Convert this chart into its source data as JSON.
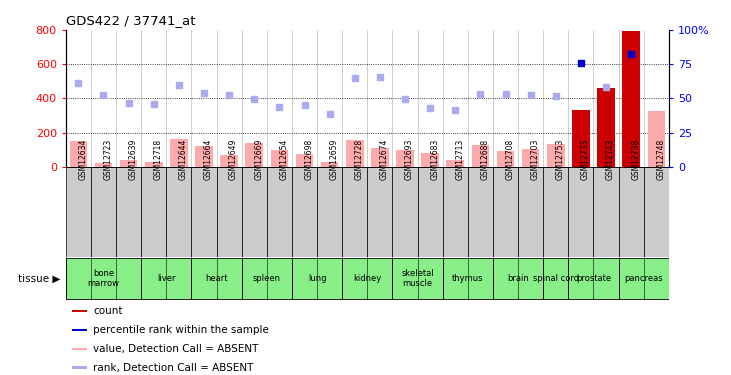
{
  "title": "GDS422 / 37741_at",
  "samples": [
    "GSM12634",
    "GSM12723",
    "GSM12639",
    "GSM12718",
    "GSM12644",
    "GSM12664",
    "GSM12649",
    "GSM12669",
    "GSM12654",
    "GSM12698",
    "GSM12659",
    "GSM12728",
    "GSM12674",
    "GSM12693",
    "GSM12683",
    "GSM12713",
    "GSM12688",
    "GSM12708",
    "GSM12703",
    "GSM12753",
    "GSM12733",
    "GSM12743",
    "GSM12738",
    "GSM12748"
  ],
  "tissues": [
    {
      "name": "bone\nmarrow",
      "start": 0,
      "end": 3
    },
    {
      "name": "liver",
      "start": 3,
      "end": 5
    },
    {
      "name": "heart",
      "start": 5,
      "end": 7
    },
    {
      "name": "spleen",
      "start": 7,
      "end": 9
    },
    {
      "name": "lung",
      "start": 9,
      "end": 11
    },
    {
      "name": "kidney",
      "start": 11,
      "end": 13
    },
    {
      "name": "skeletal\nmuscle",
      "start": 13,
      "end": 15
    },
    {
      "name": "thymus",
      "start": 15,
      "end": 17
    },
    {
      "name": "brain",
      "start": 17,
      "end": 19
    },
    {
      "name": "spinal cord",
      "start": 19,
      "end": 20
    },
    {
      "name": "prostate",
      "start": 20,
      "end": 22
    },
    {
      "name": "pancreas",
      "start": 22,
      "end": 24
    }
  ],
  "bar_values": [
    150,
    25,
    42,
    30,
    165,
    120,
    70,
    140,
    100,
    78,
    30,
    158,
    110,
    98,
    82,
    40,
    130,
    90,
    102,
    132,
    335,
    460,
    795,
    325
  ],
  "bar_colors_list": [
    "#ffaaaa",
    "#ffaaaa",
    "#ffaaaa",
    "#ffaaaa",
    "#ffaaaa",
    "#ffaaaa",
    "#ffaaaa",
    "#ffaaaa",
    "#ffaaaa",
    "#ffaaaa",
    "#ffaaaa",
    "#ffaaaa",
    "#ffaaaa",
    "#ffaaaa",
    "#ffaaaa",
    "#ffaaaa",
    "#ffaaaa",
    "#ffaaaa",
    "#ffaaaa",
    "#ffaaaa",
    "#cc0000",
    "#cc0000",
    "#cc0000",
    "#ffaaaa"
  ],
  "rank_values": [
    490,
    420,
    376,
    370,
    480,
    432,
    420,
    398,
    348,
    362,
    308,
    520,
    528,
    395,
    344,
    330,
    428,
    424,
    418,
    414,
    610,
    466,
    660,
    null
  ],
  "rank_colors": [
    "#aaaaee",
    "#aaaaee",
    "#aaaaee",
    "#aaaaee",
    "#aaaaee",
    "#aaaaee",
    "#aaaaee",
    "#aaaaee",
    "#aaaaee",
    "#aaaaee",
    "#aaaaee",
    "#aaaaee",
    "#aaaaee",
    "#aaaaee",
    "#aaaaee",
    "#aaaaee",
    "#aaaaee",
    "#aaaaee",
    "#aaaaee",
    "#aaaaee",
    "#0000cc",
    "#aaaaee",
    "#0000cc",
    "#0000cc"
  ],
  "ylim_left": [
    0,
    800
  ],
  "ylim_right": [
    0,
    100
  ],
  "yticks_left": [
    0,
    200,
    400,
    600,
    800
  ],
  "yticks_right": [
    0,
    25,
    50,
    75,
    100
  ],
  "dotted_vals": [
    200,
    400,
    600
  ],
  "tissue_color": "#88ee88",
  "sample_bg_color": "#cccccc",
  "plot_bg_color": "#ffffff",
  "legend_items": [
    {
      "label": "count",
      "color": "#cc0000"
    },
    {
      "label": "percentile rank within the sample",
      "color": "#0000cc"
    },
    {
      "label": "value, Detection Call = ABSENT",
      "color": "#ffaaaa"
    },
    {
      "label": "rank, Detection Call = ABSENT",
      "color": "#aaaaee"
    }
  ]
}
